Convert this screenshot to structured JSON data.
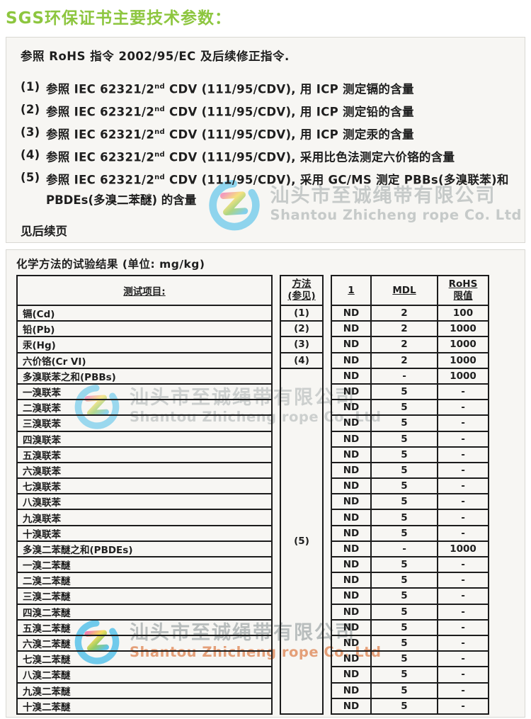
{
  "page_title": "SGS环保证书主要技术参数：",
  "colors": {
    "title_green": "#8dc63f",
    "ink": "#1e1e1e",
    "watermark_gray": "#a9b0b0",
    "watermark_orange": "#e08a5a",
    "logo_blue": "#4fc0ea",
    "scan_bg": "#f7f6f3",
    "scan_border": "#d9d8d3"
  },
  "doc": {
    "intro": "参照 RoHS 指令 2002/95/EC 及后续修正指令.",
    "items": [
      {
        "num": "(1)",
        "pre": "参照 IEC 62321/2",
        "sup": "nd",
        "post": " CDV (111/95/CDV), 用 ICP 测定镉的含量"
      },
      {
        "num": "(2)",
        "pre": "参照 IEC 62321/2",
        "sup": "nd",
        "post": " CDV (111/95/CDV), 用 ICP 测定铅的含量"
      },
      {
        "num": "(3)",
        "pre": "参照 IEC 62321/2",
        "sup": "nd",
        "post": " CDV (111/95/CDV), 用 ICP 测定汞的含量"
      },
      {
        "num": "(4)",
        "pre": "参照 IEC 62321/2",
        "sup": "nd",
        "post": " CDV (111/95/CDV), 采用比色法测定六价铬的含量"
      },
      {
        "num": "(5)",
        "pre": "参照 IEC 62321/2",
        "sup": "nd",
        "post": " CDV (111/95/CDV), 采用 GC/MS 测定 PBBs(多溴联苯)和"
      }
    ],
    "item5_cont": "PBDEs(多溴二苯醚) 的含量",
    "see_next": "见后续页"
  },
  "watermark": {
    "cn": "汕头市至诚绳带有限公司",
    "en": "Shantou Zhicheng rope Co. Ltd"
  },
  "table": {
    "caption": "化学方法的试验结果 (单位: mg/kg)",
    "headers": {
      "item": "测试项目:",
      "method_l1": "方法",
      "method_l2": "(参见)",
      "col1": "1",
      "mdl": "MDL",
      "rohs_l1": "RoHS",
      "rohs_l2": "限值"
    },
    "rows": [
      {
        "item": "镉(Cd)",
        "method": "(1)",
        "v1": "ND",
        "mdl": "2",
        "rohs": "100"
      },
      {
        "item": "铅(Pb)",
        "method": "(2)",
        "v1": "ND",
        "mdl": "2",
        "rohs": "1000"
      },
      {
        "item": "汞(Hg)",
        "method": "(3)",
        "v1": "ND",
        "mdl": "2",
        "rohs": "1000"
      },
      {
        "item": "六价铬(Cr VI)",
        "method": "(4)",
        "v1": "ND",
        "mdl": "2",
        "rohs": "1000"
      },
      {
        "item": "多溴联苯之和(PBBs)",
        "method": "(5)",
        "method_rowspan": 22,
        "v1": "ND",
        "mdl": "-",
        "rohs": "1000"
      },
      {
        "item": "一溴联苯",
        "method": null,
        "v1": "ND",
        "mdl": "5",
        "rohs": "-"
      },
      {
        "item": "二溴联苯",
        "method": null,
        "v1": "ND",
        "mdl": "5",
        "rohs": "-"
      },
      {
        "item": "三溴联苯",
        "method": null,
        "v1": "ND",
        "mdl": "5",
        "rohs": "-"
      },
      {
        "item": "四溴联苯",
        "method": null,
        "v1": "ND",
        "mdl": "5",
        "rohs": "-"
      },
      {
        "item": "五溴联苯",
        "method": null,
        "v1": "ND",
        "mdl": "5",
        "rohs": "-"
      },
      {
        "item": "六溴联苯",
        "method": null,
        "v1": "ND",
        "mdl": "5",
        "rohs": "-"
      },
      {
        "item": "七溴联苯",
        "method": null,
        "v1": "ND",
        "mdl": "5",
        "rohs": "-"
      },
      {
        "item": "八溴联苯",
        "method": null,
        "v1": "ND",
        "mdl": "5",
        "rohs": "-"
      },
      {
        "item": "九溴联苯",
        "method": null,
        "v1": "ND",
        "mdl": "5",
        "rohs": "-"
      },
      {
        "item": "十溴联苯",
        "method": null,
        "v1": "ND",
        "mdl": "5",
        "rohs": "-"
      },
      {
        "item": "多溴二苯醚之和(PBDEs)",
        "method": null,
        "v1": "ND",
        "mdl": "-",
        "rohs": "1000"
      },
      {
        "item": "一溴二苯醚",
        "method": null,
        "v1": "ND",
        "mdl": "5",
        "rohs": "-"
      },
      {
        "item": "二溴二苯醚",
        "method": null,
        "v1": "ND",
        "mdl": "5",
        "rohs": "-"
      },
      {
        "item": "三溴二苯醚",
        "method": null,
        "v1": "ND",
        "mdl": "5",
        "rohs": "-"
      },
      {
        "item": "四溴二苯醚",
        "method": null,
        "v1": "ND",
        "mdl": "5",
        "rohs": "-"
      },
      {
        "item": "五溴二苯醚",
        "method": null,
        "v1": "ND",
        "mdl": "5",
        "rohs": "-"
      },
      {
        "item": "六溴二苯醚",
        "method": null,
        "v1": "ND",
        "mdl": "5",
        "rohs": "-"
      },
      {
        "item": "七溴二苯醚",
        "method": null,
        "v1": "ND",
        "mdl": "5",
        "rohs": "-"
      },
      {
        "item": "八溴二苯醚",
        "method": null,
        "v1": "ND",
        "mdl": "5",
        "rohs": "-"
      },
      {
        "item": "九溴二苯醚",
        "method": null,
        "v1": "ND",
        "mdl": "5",
        "rohs": "-"
      },
      {
        "item": "十溴二苯醚",
        "method": null,
        "v1": "ND",
        "mdl": "5",
        "rohs": "-"
      }
    ]
  }
}
